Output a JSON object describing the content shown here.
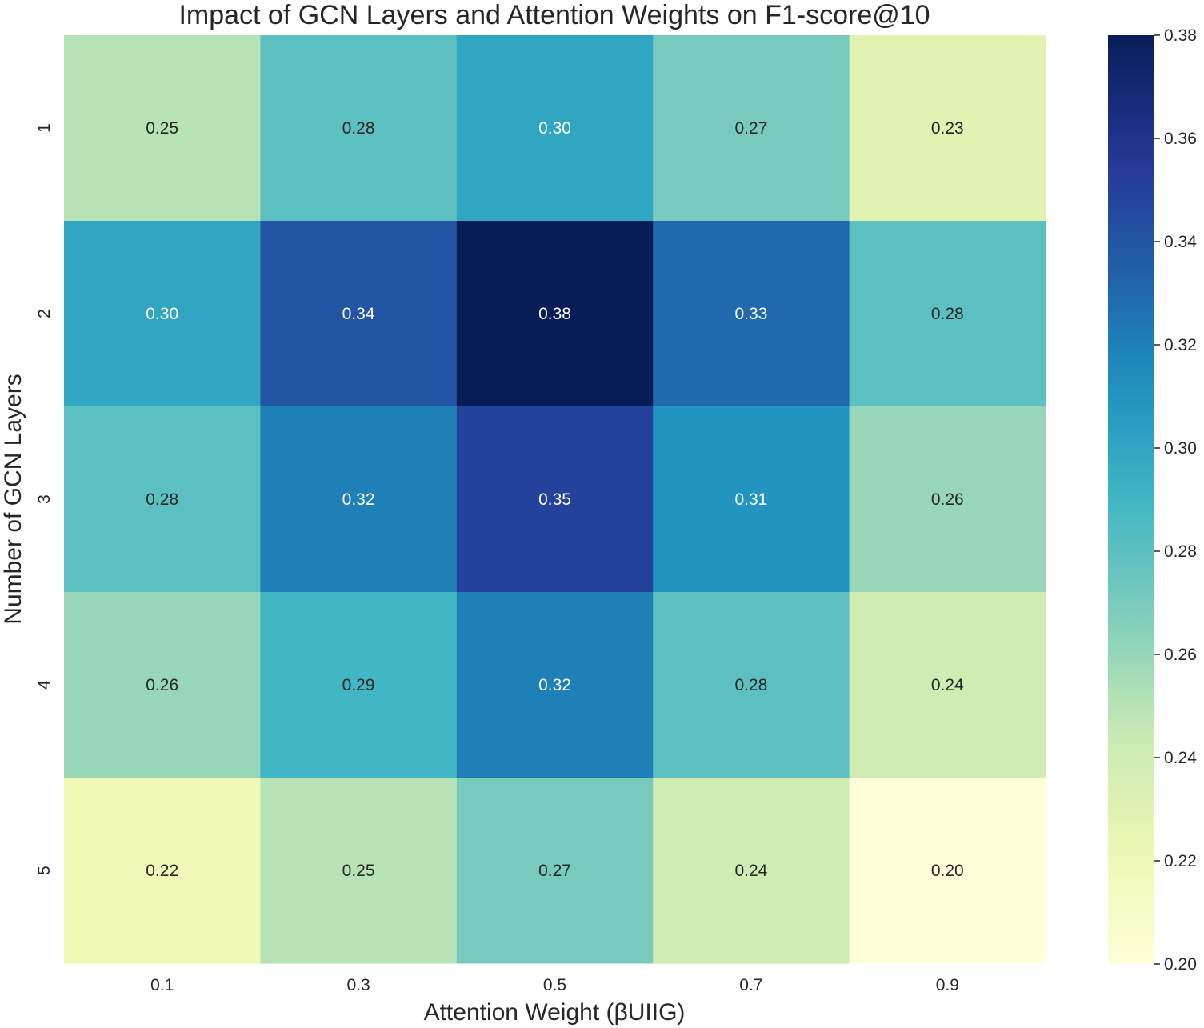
{
  "chart_data": {
    "type": "heatmap",
    "title": "Impact of GCN Layers and Attention Weights on F1-score@10",
    "xlabel": "Attention Weight (βUIIG)",
    "ylabel": "Number of GCN Layers",
    "x_categories": [
      "0.1",
      "0.3",
      "0.5",
      "0.7",
      "0.9"
    ],
    "y_categories": [
      "1",
      "2",
      "3",
      "4",
      "5"
    ],
    "values": [
      [
        0.25,
        0.28,
        0.3,
        0.27,
        0.23
      ],
      [
        0.3,
        0.34,
        0.38,
        0.33,
        0.28
      ],
      [
        0.28,
        0.32,
        0.35,
        0.31,
        0.26
      ],
      [
        0.26,
        0.29,
        0.32,
        0.28,
        0.24
      ],
      [
        0.22,
        0.25,
        0.27,
        0.24,
        0.2
      ]
    ],
    "colormap": "YlGnBu",
    "colorbar": {
      "range": [
        0.2,
        0.38
      ],
      "ticks": [
        "0.20",
        "0.22",
        "0.24",
        "0.26",
        "0.28",
        "0.30",
        "0.32",
        "0.34",
        "0.36",
        "0.38"
      ]
    },
    "annotation_format": "0.00"
  }
}
